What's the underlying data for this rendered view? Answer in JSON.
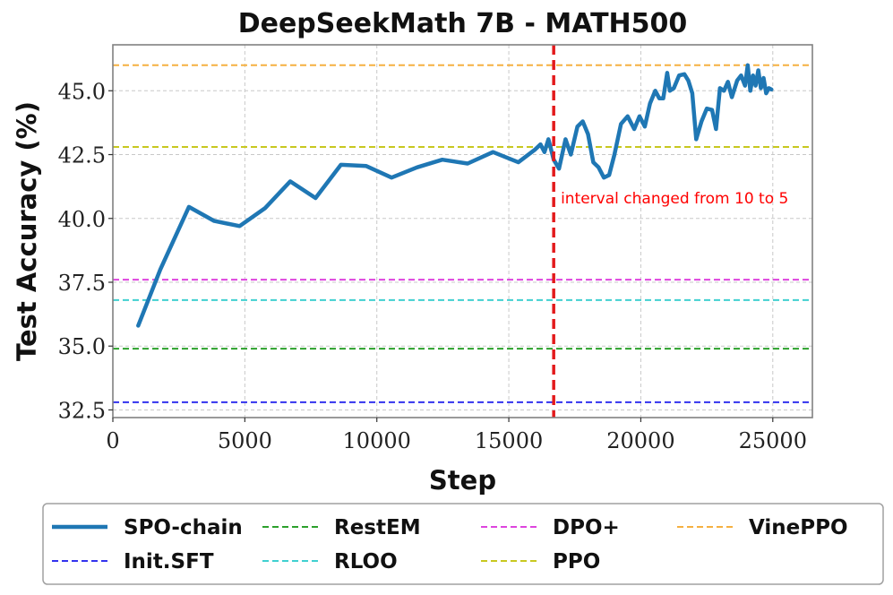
{
  "chart_data": {
    "type": "line",
    "title": "DeepSeekMath 7B - MATH500",
    "xlabel": "Step",
    "ylabel": "Test Accuracy (%)",
    "xlim": [
      0,
      26500
    ],
    "ylim": [
      32.2,
      46.8
    ],
    "xticks": [
      0,
      5000,
      10000,
      15000,
      20000,
      25000
    ],
    "yticks": [
      32.5,
      35.0,
      37.5,
      40.0,
      42.5,
      45.0
    ],
    "xtick_labels": [
      "0",
      "5000",
      "10000",
      "15000",
      "20000",
      "25000"
    ],
    "ytick_labels": [
      "32.5",
      "35.0",
      "37.5",
      "40.0",
      "42.5",
      "45.0"
    ],
    "grid": true,
    "legend_position": "below",
    "series": [
      {
        "name": "SPO-chain",
        "style": "solid",
        "color": "#1f77b4",
        "x": [
          960,
          1800,
          2880,
          3840,
          4800,
          5760,
          6720,
          7680,
          8640,
          9600,
          10560,
          11520,
          12480,
          13440,
          14400,
          15360,
          16000,
          16200,
          16350,
          16500,
          16700,
          16900,
          17150,
          17350,
          17600,
          17800,
          18000,
          18200,
          18400,
          18600,
          18800,
          19000,
          19250,
          19500,
          19750,
          19950,
          20150,
          20350,
          20550,
          20700,
          20850,
          21000,
          21100,
          21250,
          21450,
          21650,
          21800,
          21950,
          22100,
          22300,
          22500,
          22700,
          22850,
          23000,
          23150,
          23300,
          23450,
          23650,
          23800,
          23950,
          24050,
          24150,
          24250,
          24350,
          24450,
          24550,
          24650,
          24750,
          24850,
          24950
        ],
        "y": [
          35.8,
          38.0,
          40.45,
          39.9,
          39.7,
          40.4,
          41.45,
          40.8,
          42.1,
          42.05,
          41.6,
          42.0,
          42.3,
          42.15,
          42.6,
          42.2,
          42.7,
          42.9,
          42.6,
          43.1,
          42.3,
          41.95,
          43.1,
          42.5,
          43.6,
          43.8,
          43.3,
          42.2,
          42.0,
          41.6,
          41.7,
          42.5,
          43.7,
          44.0,
          43.5,
          44.0,
          43.6,
          44.5,
          45.0,
          44.7,
          44.7,
          45.7,
          45.0,
          45.1,
          45.6,
          45.65,
          45.4,
          44.9,
          43.1,
          43.8,
          44.3,
          44.25,
          43.5,
          45.1,
          45.0,
          45.35,
          44.75,
          45.4,
          45.6,
          45.2,
          46.0,
          45.0,
          45.6,
          45.2,
          45.8,
          45.1,
          45.5,
          44.9,
          45.1,
          45.05
        ]
      },
      {
        "name": "Init.SFT",
        "style": "dashed",
        "color": "#3333ee",
        "value": 32.8
      },
      {
        "name": "RestEM",
        "style": "dashed",
        "color": "#2ca02c",
        "value": 34.9
      },
      {
        "name": "RLOO",
        "style": "dashed",
        "color": "#40d0d0",
        "value": 36.8
      },
      {
        "name": "DPO+",
        "style": "dashed",
        "color": "#dd44dd",
        "value": 37.6
      },
      {
        "name": "PPO",
        "style": "dashed",
        "color": "#c8c820",
        "value": 42.8
      },
      {
        "name": "VinePPO",
        "style": "dashed",
        "color": "#f5b041",
        "value": 46.0
      }
    ],
    "vline": {
      "x": 16700,
      "color": "#e31a1c",
      "style": "dashed"
    },
    "annotations": [
      {
        "text": "interval changed from 10 to 5",
        "x": 16900,
        "y": 40.8,
        "color": "#ff0000"
      }
    ]
  }
}
